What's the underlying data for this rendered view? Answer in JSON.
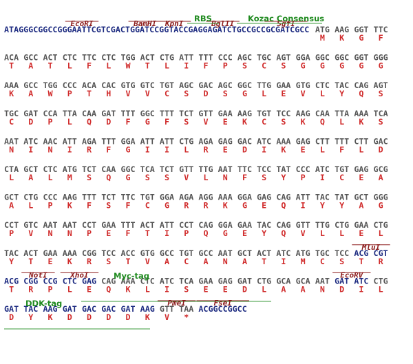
{
  "sequence": {
    "leader": "ATAGGGCGGCCGGGAATTCGTCGACTGGATCCGGTACCGAGGAGATCTGCCGCCGCGATCGCC",
    "rows": [
      {
        "codons": [
          "ATG",
          "AAG",
          "GGT",
          "TTC"
        ],
        "translation": [
          "M",
          "K",
          "G",
          "F"
        ]
      },
      {
        "codons": [
          "ACA",
          "GCC",
          "ACT",
          "CTC",
          "TTC",
          "CTC",
          "TGG",
          "ACT",
          "CTG",
          "ATT",
          "TTT",
          "CCC",
          "AGC",
          "TGC",
          "AGT",
          "GGA",
          "GGC",
          "GGC",
          "GGT",
          "GGG"
        ],
        "translation": [
          "T",
          "A",
          "T",
          "L",
          "F",
          "L",
          "W",
          "T",
          "L",
          "I",
          "F",
          "P",
          "S",
          "C",
          "S",
          "G",
          "G",
          "G",
          "G",
          "G"
        ]
      },
      {
        "codons": [
          "AAA",
          "GCC",
          "TGG",
          "CCC",
          "ACA",
          "CAC",
          "GTG",
          "GTC",
          "TGT",
          "AGC",
          "GAC",
          "AGC",
          "GGC",
          "TTG",
          "GAA",
          "GTG",
          "CTC",
          "TAC",
          "CAG",
          "AGT"
        ],
        "translation": [
          "K",
          "A",
          "W",
          "P",
          "T",
          "H",
          "V",
          "V",
          "C",
          "S",
          "D",
          "S",
          "G",
          "L",
          "E",
          "V",
          "L",
          "Y",
          "Q",
          "S"
        ]
      },
      {
        "codons": [
          "TGC",
          "GAT",
          "CCA",
          "TTA",
          "CAA",
          "GAT",
          "TTT",
          "GGC",
          "TTT",
          "TCT",
          "GTT",
          "GAA",
          "AAG",
          "TGT",
          "TCC",
          "AAG",
          "CAA",
          "TTA",
          "AAA",
          "TCA"
        ],
        "translation": [
          "C",
          "D",
          "P",
          "L",
          "Q",
          "D",
          "F",
          "G",
          "F",
          "S",
          "V",
          "E",
          "K",
          "C",
          "S",
          "K",
          "Q",
          "L",
          "K",
          "S"
        ]
      },
      {
        "codons": [
          "AAT",
          "ATC",
          "AAC",
          "ATT",
          "AGA",
          "TTT",
          "GGA",
          "ATT",
          "ATT",
          "CTG",
          "AGA",
          "GAG",
          "GAC",
          "ATC",
          "AAA",
          "GAG",
          "CTT",
          "TTT",
          "CTT",
          "GAC"
        ],
        "translation": [
          "N",
          "I",
          "N",
          "I",
          "R",
          "F",
          "G",
          "I",
          "I",
          "L",
          "R",
          "E",
          "D",
          "I",
          "K",
          "E",
          "L",
          "F",
          "L",
          "D"
        ]
      },
      {
        "codons": [
          "CTA",
          "GCT",
          "CTC",
          "ATG",
          "TCT",
          "CAA",
          "GGC",
          "TCA",
          "TCT",
          "GTT",
          "TTG",
          "AAT",
          "TTC",
          "TCC",
          "TAT",
          "CCC",
          "ATC",
          "TGT",
          "GAG",
          "GCG"
        ],
        "translation": [
          "L",
          "A",
          "L",
          "M",
          "S",
          "Q",
          "G",
          "S",
          "S",
          "V",
          "L",
          "N",
          "F",
          "S",
          "Y",
          "P",
          "I",
          "C",
          "E",
          "A"
        ]
      },
      {
        "codons": [
          "GCT",
          "CTG",
          "CCC",
          "AAG",
          "TTT",
          "TCT",
          "TTC",
          "TGT",
          "GGA",
          "AGA",
          "AGG",
          "AAA",
          "GGA",
          "GAG",
          "CAG",
          "ATT",
          "TAC",
          "TAT",
          "GCT",
          "GGG"
        ],
        "translation": [
          "A",
          "L",
          "P",
          "K",
          "F",
          "S",
          "F",
          "C",
          "G",
          "R",
          "R",
          "K",
          "G",
          "E",
          "Q",
          "I",
          "Y",
          "Y",
          "A",
          "G"
        ]
      },
      {
        "codons": [
          "CCT",
          "GTC",
          "AAT",
          "AAT",
          "CCT",
          "GAA",
          "TTT",
          "ACT",
          "ATT",
          "CCT",
          "CAG",
          "GGA",
          "GAA",
          "TAC",
          "CAG",
          "GTT",
          "TTG",
          "CTG",
          "GAA",
          "CTG"
        ],
        "translation": [
          "P",
          "V",
          "N",
          "N",
          "P",
          "E",
          "F",
          "T",
          "I",
          "P",
          "Q",
          "G",
          "E",
          "Y",
          "Q",
          "V",
          "L",
          "L",
          "E",
          "L"
        ]
      },
      {
        "codons": [
          "TAC",
          "ACT",
          "GAA",
          "AAA",
          "CGG",
          "TCC",
          "ACC",
          "GTG",
          "GCC",
          "TGT",
          "GCC",
          "AAT",
          "GCT",
          "ACT",
          "ATC",
          "ATG",
          "TGC",
          "TCC",
          "ACG",
          "CGT"
        ],
        "translation": [
          "Y",
          "T",
          "E",
          "K",
          "R",
          "S",
          "T",
          "V",
          "A",
          "C",
          "A",
          "N",
          "A",
          "T",
          "I",
          "M",
          "C",
          "S",
          "T",
          "R"
        ]
      },
      {
        "codons": [
          "ACG",
          "CGG",
          "CCG",
          "CTC",
          "GAG",
          "CAG",
          "AAA",
          "CTC",
          "ATC",
          "TCA",
          "GAA",
          "GAG",
          "GAT",
          "CTG",
          "GCA",
          "GCA",
          "AAT",
          "GAT",
          "ATC",
          "CTG"
        ],
        "translation": [
          "T",
          "R",
          "P",
          "L",
          "E",
          "Q",
          "K",
          "L",
          "I",
          "S",
          "E",
          "E",
          "D",
          "L",
          "A",
          "A",
          "N",
          "D",
          "I",
          "L"
        ]
      },
      {
        "codons": [
          "GAT",
          "TAC",
          "AAG",
          "GAT",
          "GAC",
          "GAC",
          "GAT",
          "AAG",
          "GTT",
          "TAA"
        ],
        "translation": [
          "D",
          "Y",
          "K",
          "D",
          "D",
          "D",
          "D",
          "K",
          "V",
          "*"
        ]
      }
    ],
    "trailer": "ACGGCCGGCC"
  },
  "sites": [
    "EcoRI",
    "BamHI",
    "KpnI",
    "BglII",
    "SgfI",
    "MluI",
    "NotI",
    "XhoI",
    "EcoRV",
    "PmeI",
    "FseI"
  ],
  "features": [
    "RBS",
    "Kozac Consensus",
    "Myc-tag",
    "DDK-tag"
  ]
}
